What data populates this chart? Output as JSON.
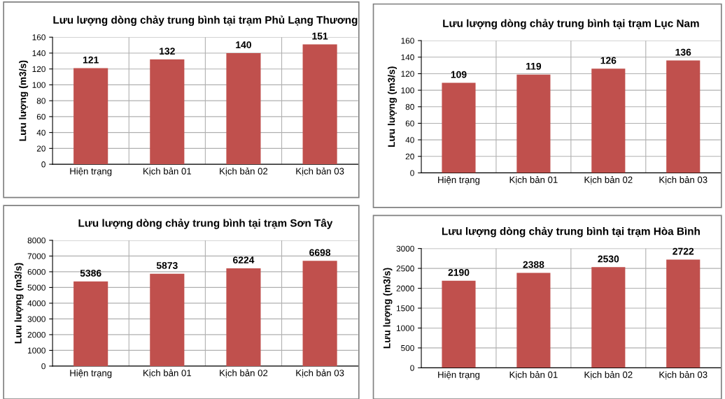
{
  "chart_data": [
    {
      "type": "bar",
      "title": "Lưu lượng dòng chảy trung bình tại trạm Phủ Lạng Thương",
      "ylabel": "Lưu lượng (m3/s)",
      "categories": [
        "Hiện trạng",
        "Kịch bản 01",
        "Kịch bản 02",
        "Kịch bản 03"
      ],
      "values": [
        121,
        132,
        140,
        151
      ],
      "color": "#c0504d",
      "ylim": [
        0,
        160
      ],
      "yticks": [
        0,
        20,
        40,
        60,
        80,
        100,
        120,
        140,
        160
      ],
      "grid": true,
      "data_labels": true
    },
    {
      "type": "bar",
      "title": "Lưu lượng dòng chảy trung bình tại trạm Lục Nam",
      "ylabel": "Lưu lượng (m3/s)",
      "categories": [
        "Hiện trạng",
        "Kịch bản 01",
        "Kịch bản 02",
        "Kịch bản 03"
      ],
      "values": [
        109,
        119,
        126,
        136
      ],
      "color": "#c0504d",
      "ylim": [
        0,
        160
      ],
      "yticks": [
        0,
        20,
        40,
        60,
        80,
        100,
        120,
        140,
        160
      ],
      "grid": true,
      "data_labels": true
    },
    {
      "type": "bar",
      "title": "Lưu lượng dòng chảy trung bình tại trạm Sơn Tây",
      "ylabel": "Lưu lượng (m3/s)",
      "categories": [
        "Hiện trạng",
        "Kịch bản 01",
        "Kịch bản 02",
        "Kịch bản 03"
      ],
      "values": [
        5386,
        5873,
        6224,
        6698
      ],
      "color": "#c0504d",
      "ylim": [
        0,
        8000
      ],
      "yticks": [
        0,
        1000,
        2000,
        3000,
        4000,
        5000,
        6000,
        7000,
        8000
      ],
      "grid": true,
      "data_labels": true
    },
    {
      "type": "bar",
      "title": "Lưu lượng dòng chảy trung bình tại trạm Hòa Bình",
      "ylabel": "Lưu lượng (m3/s)",
      "categories": [
        "Hiện trạng",
        "Kịch bản 01",
        "Kịch bản 02",
        "Kịch bản 03"
      ],
      "values": [
        2190,
        2388,
        2530,
        2722
      ],
      "color": "#c0504d",
      "ylim": [
        0,
        3000
      ],
      "yticks": [
        0,
        500,
        1000,
        1500,
        2000,
        2500,
        3000
      ],
      "grid": true,
      "data_labels": true
    }
  ]
}
